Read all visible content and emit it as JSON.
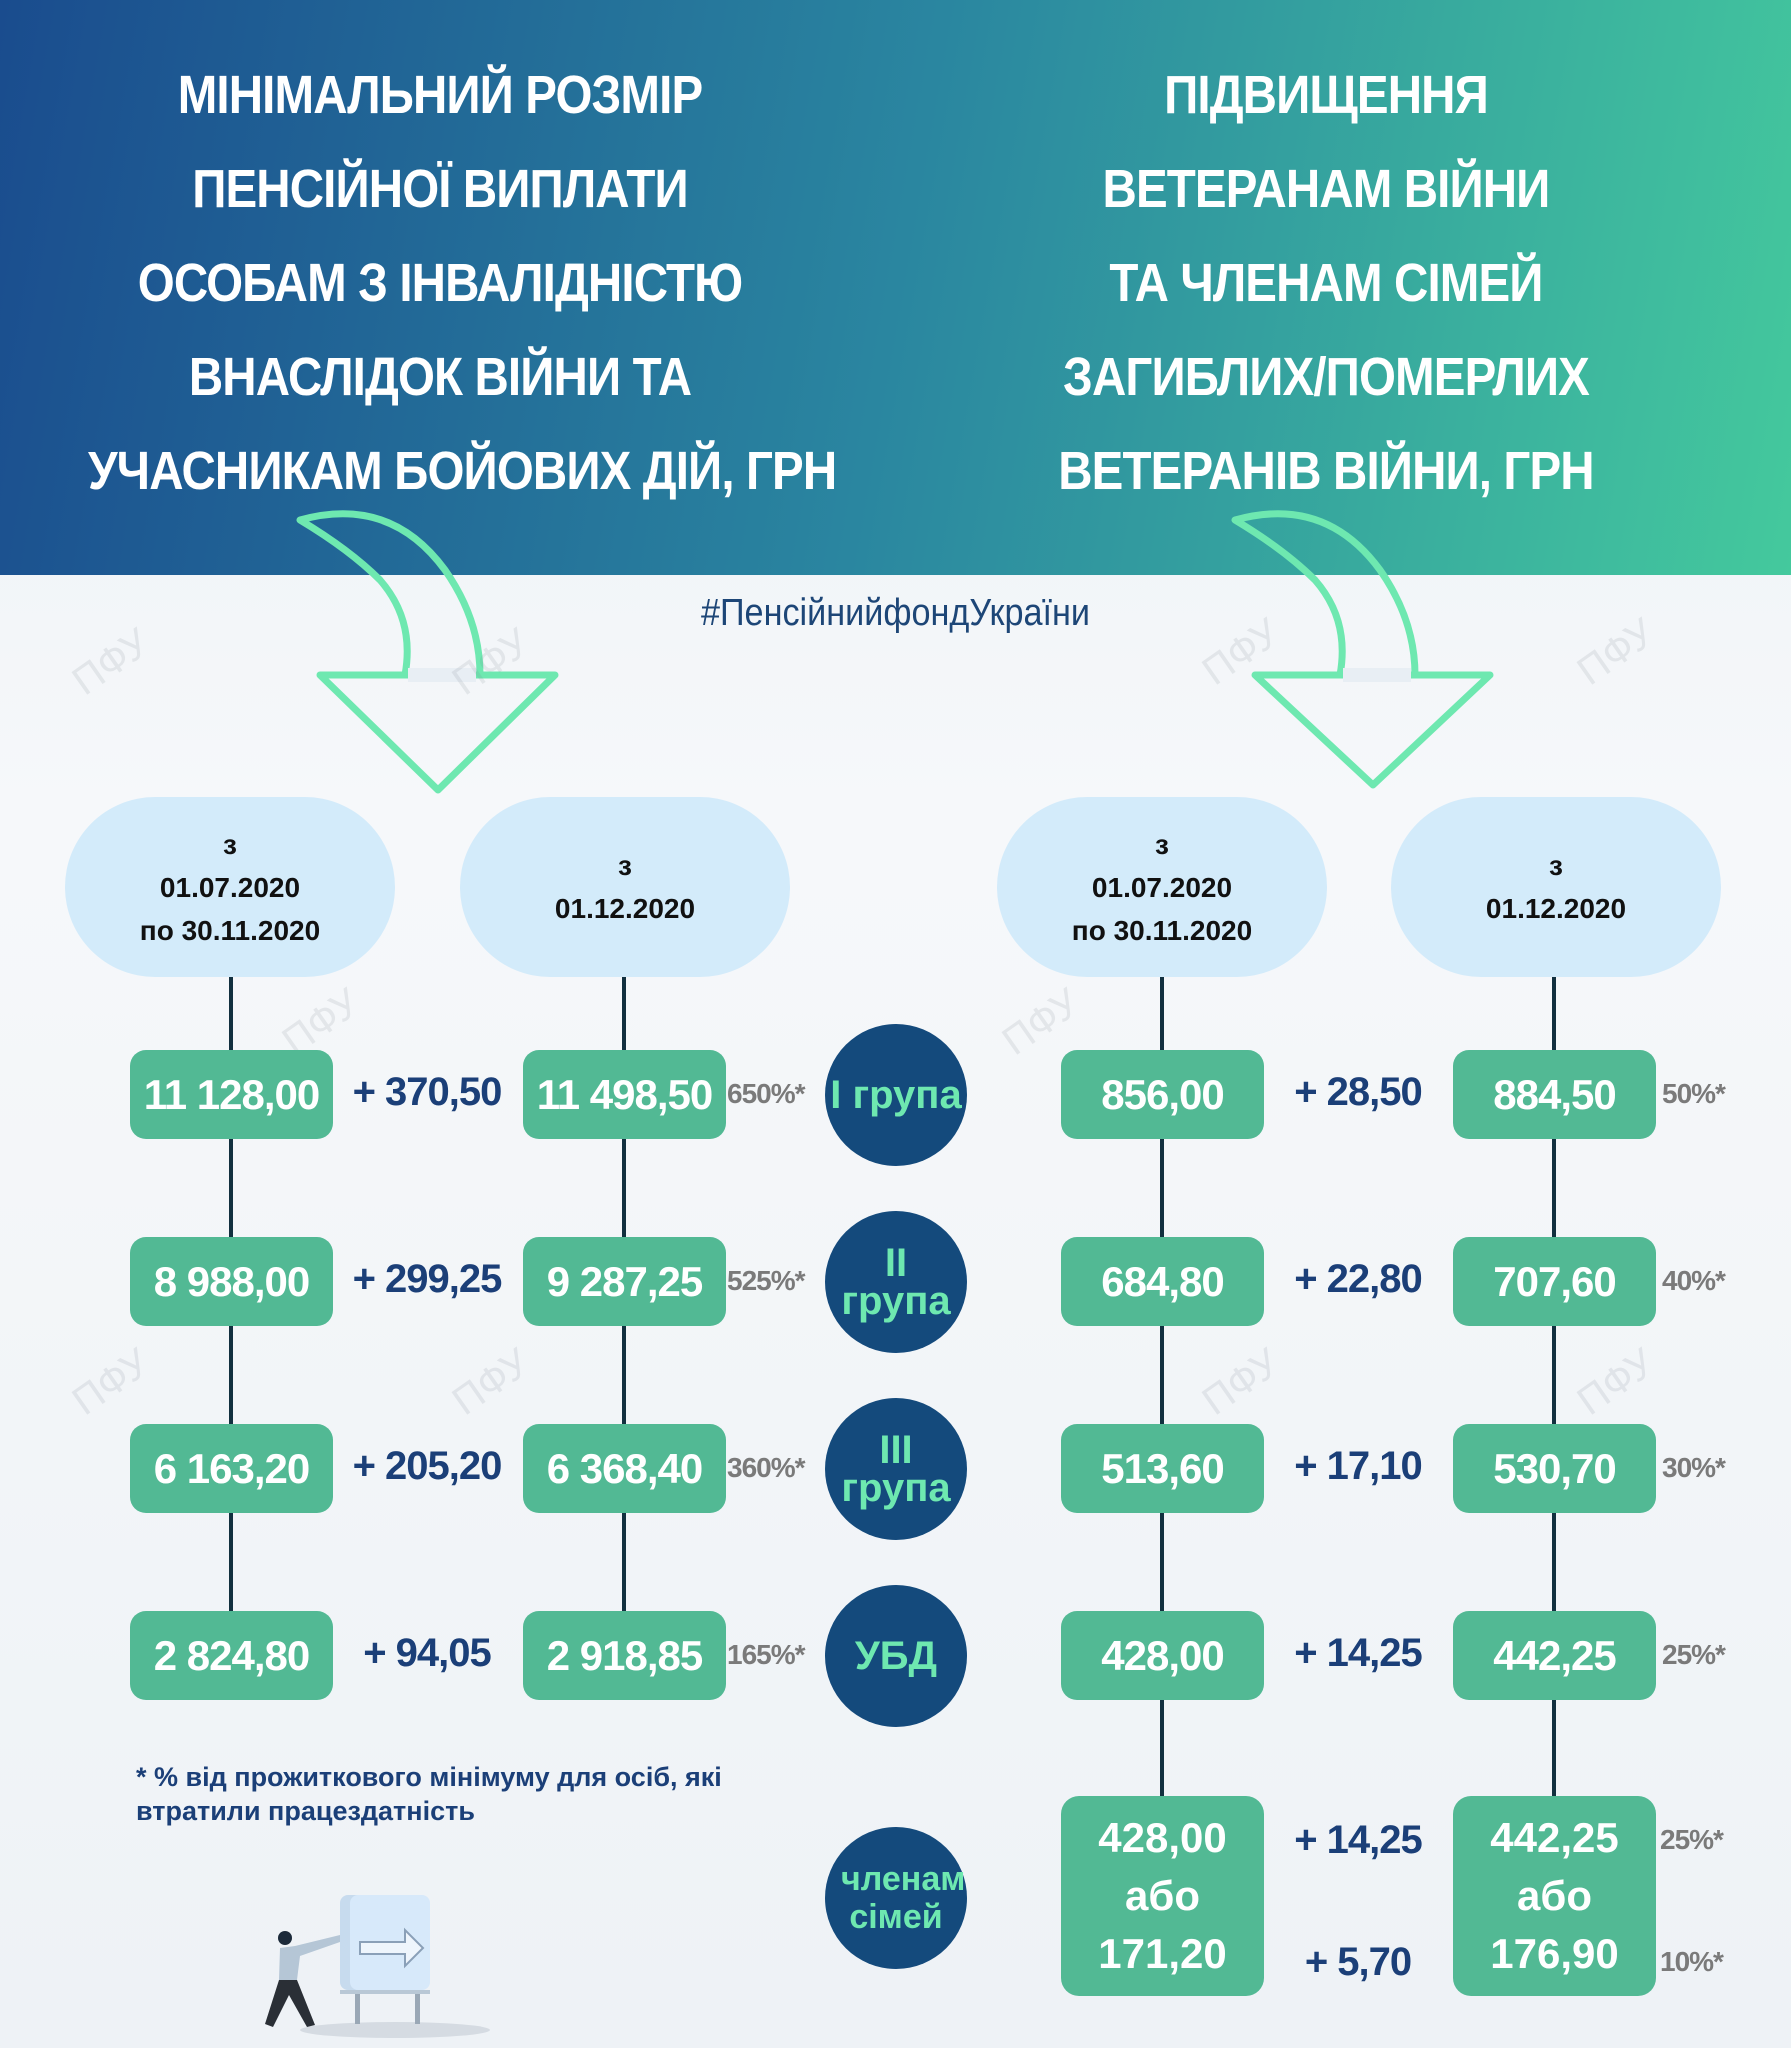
{
  "left_title": [
    "МІНІМАЛЬНИЙ РОЗМІР",
    "ПЕНСІЙНОЇ ВИПЛАТИ",
    "ОСОБАМ З ІНВАЛІДНІСТЮ",
    "ВНАСЛІДОК ВІЙНИ ТА",
    "УЧАСНИКАМ БОЙОВИХ ДІЙ, ГРН"
  ],
  "right_title": [
    "ПІДВИЩЕННЯ",
    "ВЕТЕРАНАМ ВІЙНИ",
    "ТА ЧЛЕНАМ СІМЕЙ",
    "ЗАГИБЛИХ/ПОМЕРЛИХ",
    "ВЕТЕРАНІВ ВІЙНИ, ГРН"
  ],
  "hashtag": "#ПенсійнийфондУкраїни",
  "watermark": "ПФУ",
  "dates": {
    "period1": [
      "з",
      "01.07.2020",
      "по 30.11.2020"
    ],
    "period2": [
      "з",
      "01.12.2020"
    ]
  },
  "categories": [
    "I група",
    "II група",
    "III група",
    "УБД",
    "членам сімей"
  ],
  "left_table": [
    {
      "old": "11 128,00",
      "diff": "+ 370,50",
      "new": "11 498,50",
      "pct": "650%*"
    },
    {
      "old": "8 988,00",
      "diff": "+ 299,25",
      "new": "9 287,25",
      "pct": "525%*"
    },
    {
      "old": "6 163,20",
      "diff": "+ 205,20",
      "new": "6 368,40",
      "pct": "360%*"
    },
    {
      "old": "2 824,80",
      "diff": "+ 94,05",
      "new": "2 918,85",
      "pct": "165%*"
    }
  ],
  "right_table": [
    {
      "old": "856,00",
      "diff": "+ 28,50",
      "new": "884,50",
      "pct": "50%*"
    },
    {
      "old": "684,80",
      "diff": "+ 22,80",
      "new": "707,60",
      "pct": "40%*"
    },
    {
      "old": "513,60",
      "diff": "+ 17,10",
      "new": "530,70",
      "pct": "30%*"
    },
    {
      "old": "428,00",
      "diff": "+ 14,25",
      "new": "442,25",
      "pct": "25%*"
    }
  ],
  "family": {
    "old": [
      "428,00",
      "або",
      "171,20"
    ],
    "diff": [
      "+ 14,25",
      "+ 5,70"
    ],
    "new": [
      "442,25",
      "або",
      "176,90"
    ],
    "pct": [
      "25%*",
      "10%*"
    ]
  },
  "footnote": [
    "* % від прожиткового мінімуму для осіб, які",
    "втратили працездатність"
  ],
  "colors": {
    "header_start": "#1a4c8e",
    "header_end": "#44c99d",
    "box": "#52b994",
    "circle": "#144a7c",
    "circle_text": "#6ee8b0",
    "arrow": "#6ee8b0",
    "oval": "#d3ebfa"
  }
}
